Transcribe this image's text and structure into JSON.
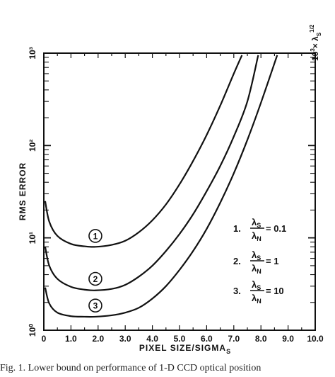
{
  "chart_data": {
    "type": "line",
    "y_scale": "log",
    "x_range": [
      0,
      10
    ],
    "y_range": [
      1,
      1000
    ],
    "x_ticks": [
      "0",
      "1.0",
      "2.0",
      "3.0",
      "4.0",
      "5.0",
      "6.0",
      "7.0",
      "8.0",
      "9.0",
      "10.0"
    ],
    "y_ticks": [
      "10⁰",
      "10¹",
      "10²",
      "10³"
    ],
    "xlabel": "PIXEL SIZE/SIGMA",
    "xlabel_sub": "S",
    "ylabel": "RMS ERROR",
    "ylabel_right_top": "× λ",
    "series": [
      {
        "name": "1",
        "x": [
          0.05,
          0.2,
          0.5,
          1.0,
          1.5,
          1.9,
          2.5,
          3.0,
          3.5,
          4.0,
          4.5,
          5.0,
          5.5,
          6.0,
          6.5,
          7.0,
          7.3
        ],
        "y": [
          25,
          15,
          10.5,
          8.6,
          8.1,
          8.0,
          8.4,
          9.3,
          11.5,
          15.5,
          23,
          38,
          68,
          130,
          270,
          600,
          950
        ]
      },
      {
        "name": "2",
        "x": [
          0.05,
          0.2,
          0.5,
          1.0,
          1.5,
          1.9,
          2.5,
          3.0,
          3.5,
          4.0,
          4.5,
          5.0,
          5.5,
          6.0,
          6.5,
          7.0,
          7.5,
          7.9
        ],
        "y": [
          8.0,
          5.0,
          3.6,
          2.95,
          2.75,
          2.7,
          2.8,
          3.1,
          3.8,
          5.0,
          7.2,
          11,
          18,
          32,
          60,
          125,
          300,
          950
        ]
      },
      {
        "name": "3",
        "x": [
          0.05,
          0.2,
          0.5,
          1.0,
          1.5,
          1.9,
          2.5,
          3.0,
          3.5,
          4.0,
          4.5,
          5.0,
          5.5,
          6.0,
          6.5,
          7.0,
          7.5,
          8.0,
          8.6
        ],
        "y": [
          2.9,
          1.95,
          1.55,
          1.42,
          1.4,
          1.4,
          1.45,
          1.55,
          1.75,
          2.2,
          3.0,
          4.5,
          7.2,
          12.5,
          24,
          50,
          115,
          290,
          950
        ]
      }
    ],
    "curve_labels": [
      {
        "text": "1",
        "x": 1.9,
        "y": 10.5
      },
      {
        "text": "2",
        "x": 1.9,
        "y": 3.6
      },
      {
        "text": "3",
        "x": 1.9,
        "y": 1.85
      }
    ],
    "legend": [
      {
        "index": "1.",
        "num": "λ",
        "num_sub": "S",
        "den": "λ",
        "den_sub": "N",
        "value": "= 0.1"
      },
      {
        "index": "2.",
        "num": "λ",
        "num_sub": "S",
        "den": "λ",
        "den_sub": "N",
        "value": "= 1"
      },
      {
        "index": "3.",
        "num": "λ",
        "num_sub": "S",
        "den": "λ",
        "den_sub": "N",
        "value": "= 10"
      }
    ]
  },
  "caption": "Fig. 1.   Lower bound on performance of 1-D CCD optical position"
}
